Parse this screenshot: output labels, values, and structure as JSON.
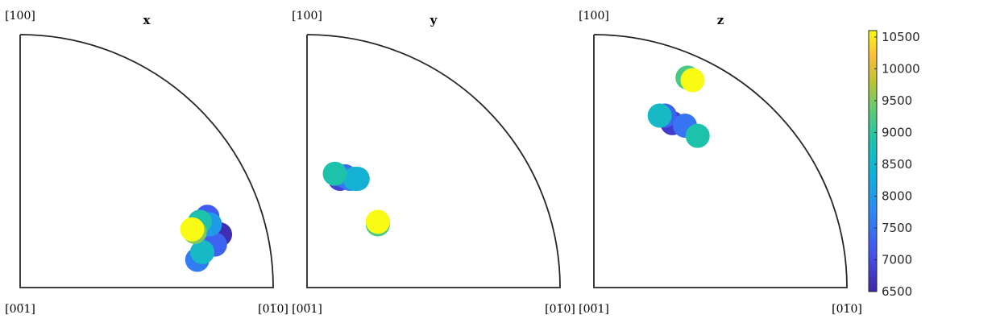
{
  "chart_data": [
    {
      "type": "scatter",
      "title": "x",
      "corner_labels": {
        "top": "[100]",
        "bottom_left": "[00̅1]",
        "bottom_right": "[01̅0]"
      },
      "points": [
        {
          "x": 0.74,
          "y": 0.28,
          "value": 7200
        },
        {
          "x": 0.69,
          "y": 0.23,
          "value": 6700
        },
        {
          "x": 0.7,
          "y": 0.11,
          "value": 7600
        },
        {
          "x": 0.79,
          "y": 0.21,
          "value": 6600
        },
        {
          "x": 0.77,
          "y": 0.17,
          "value": 7300
        },
        {
          "x": 0.72,
          "y": 0.14,
          "value": 7600
        },
        {
          "x": 0.75,
          "y": 0.25,
          "value": 8000
        },
        {
          "x": 0.71,
          "y": 0.26,
          "value": 8900
        },
        {
          "x": 0.72,
          "y": 0.14,
          "value": 8600
        },
        {
          "x": 0.69,
          "y": 0.22,
          "value": 9500
        },
        {
          "x": 0.68,
          "y": 0.23,
          "value": 10600
        }
      ]
    },
    {
      "type": "scatter",
      "title": "y",
      "corner_labels": {
        "top": "[100]",
        "bottom_left": "[00̅1]",
        "bottom_right": "[01̅0]"
      },
      "points": [
        {
          "x": 0.13,
          "y": 0.43,
          "value": 6900
        },
        {
          "x": 0.15,
          "y": 0.44,
          "value": 7400
        },
        {
          "x": 0.17,
          "y": 0.43,
          "value": 7600
        },
        {
          "x": 0.19,
          "y": 0.43,
          "value": 8500
        },
        {
          "x": 0.2,
          "y": 0.43,
          "value": 8400
        },
        {
          "x": 0.11,
          "y": 0.45,
          "value": 8900
        },
        {
          "x": 0.28,
          "y": 0.25,
          "value": 9200
        },
        {
          "x": 0.28,
          "y": 0.26,
          "value": 10600
        }
      ]
    },
    {
      "type": "scatter",
      "title": "z",
      "corner_labels": {
        "top": "[100]",
        "bottom_left": "[00̅1]",
        "bottom_right": "[01̅0]"
      },
      "points": [
        {
          "x": 0.31,
          "y": 0.65,
          "value": 6800
        },
        {
          "x": 0.28,
          "y": 0.68,
          "value": 7300
        },
        {
          "x": 0.36,
          "y": 0.64,
          "value": 7500
        },
        {
          "x": 0.26,
          "y": 0.68,
          "value": 8600
        },
        {
          "x": 0.41,
          "y": 0.6,
          "value": 8900
        },
        {
          "x": 0.37,
          "y": 0.83,
          "value": 9200
        },
        {
          "x": 0.39,
          "y": 0.82,
          "value": 10600
        }
      ]
    }
  ],
  "colorbar": {
    "min": 6500,
    "max": 10600,
    "ticks": [
      "6500",
      "7000",
      "7500",
      "8000",
      "8500",
      "9000",
      "9500",
      "10000",
      "10500"
    ],
    "colormap": "parula"
  }
}
